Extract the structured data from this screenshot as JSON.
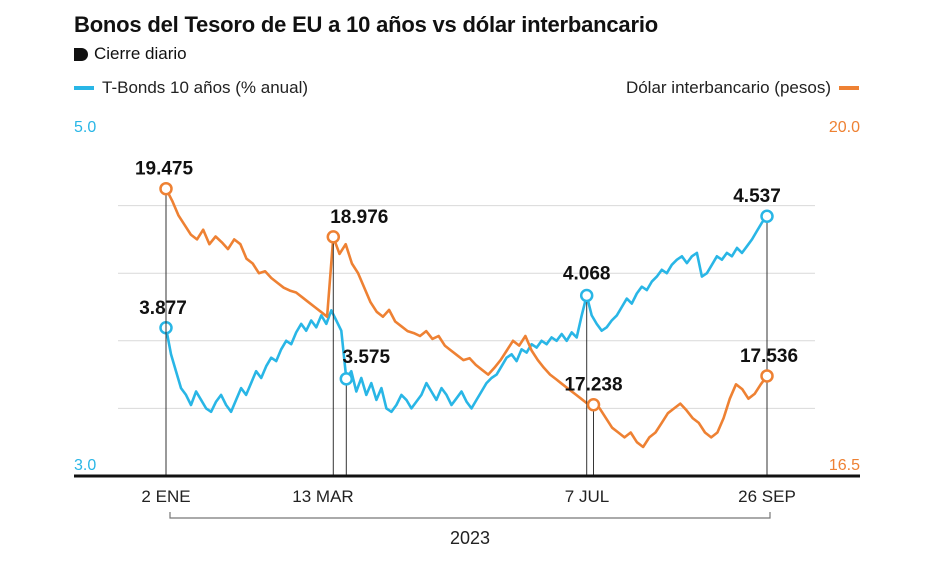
{
  "header": {
    "title": "Bonos del Tesoro de EU a 10 años vs dólar interbancario",
    "subtitle": "Cierre diario"
  },
  "colors": {
    "blue": "#29b6e6",
    "orange": "#ee8133",
    "axis": "#111111",
    "grid": "#d9d9d9"
  },
  "chart_data": {
    "type": "line",
    "x_axis": {
      "tick_labels": [
        "2 ENE",
        "13 MAR",
        "7 JUL",
        "26 SEP"
      ],
      "year_label": "2023"
    },
    "left_axis": {
      "min": 3.0,
      "max": 5.0,
      "min_label": "3.0",
      "max_label": "5.0"
    },
    "right_axis": {
      "min": 16.5,
      "max": 20.0,
      "min_label": "16.5",
      "max_label": "20.0"
    },
    "grid": true,
    "series": [
      {
        "name": "T-Bonds 10 años (% anual)",
        "axis": "left",
        "values": [
          3.877,
          3.72,
          3.62,
          3.52,
          3.48,
          3.42,
          3.5,
          3.45,
          3.4,
          3.38,
          3.44,
          3.48,
          3.42,
          3.38,
          3.45,
          3.52,
          3.48,
          3.55,
          3.62,
          3.58,
          3.65,
          3.7,
          3.68,
          3.75,
          3.8,
          3.78,
          3.85,
          3.9,
          3.86,
          3.92,
          3.88,
          3.95,
          3.9,
          3.98,
          3.92,
          3.86,
          3.575,
          3.62,
          3.5,
          3.58,
          3.48,
          3.55,
          3.45,
          3.52,
          3.4,
          3.38,
          3.42,
          3.48,
          3.45,
          3.4,
          3.44,
          3.48,
          3.55,
          3.5,
          3.45,
          3.52,
          3.48,
          3.42,
          3.46,
          3.5,
          3.44,
          3.4,
          3.45,
          3.5,
          3.55,
          3.58,
          3.6,
          3.65,
          3.7,
          3.72,
          3.68,
          3.75,
          3.73,
          3.78,
          3.76,
          3.8,
          3.78,
          3.82,
          3.8,
          3.84,
          3.8,
          3.85,
          3.82,
          3.95,
          4.068,
          3.95,
          3.9,
          3.86,
          3.88,
          3.92,
          3.95,
          4.0,
          4.05,
          4.02,
          4.08,
          4.12,
          4.1,
          4.15,
          4.18,
          4.22,
          4.2,
          4.25,
          4.28,
          4.3,
          4.26,
          4.3,
          4.32,
          4.18,
          4.2,
          4.25,
          4.3,
          4.28,
          4.32,
          4.3,
          4.35,
          4.32,
          4.36,
          4.4,
          4.45,
          4.5,
          4.537
        ]
      },
      {
        "name": "Dólar interbancario (pesos)",
        "axis": "right",
        "values": [
          19.475,
          19.35,
          19.2,
          19.1,
          19.0,
          18.95,
          19.05,
          18.9,
          18.98,
          18.92,
          18.85,
          18.95,
          18.9,
          18.75,
          18.7,
          18.6,
          18.62,
          18.55,
          18.5,
          18.45,
          18.42,
          18.4,
          18.35,
          18.3,
          18.25,
          18.2,
          18.15,
          18.976,
          18.8,
          18.9,
          18.7,
          18.6,
          18.45,
          18.3,
          18.2,
          18.15,
          18.22,
          18.1,
          18.05,
          18.0,
          17.98,
          17.95,
          18.0,
          17.92,
          17.95,
          17.85,
          17.8,
          17.75,
          17.7,
          17.72,
          17.65,
          17.6,
          17.55,
          17.62,
          17.7,
          17.8,
          17.9,
          17.85,
          17.95,
          17.8,
          17.7,
          17.62,
          17.55,
          17.5,
          17.45,
          17.4,
          17.35,
          17.3,
          17.25,
          17.238,
          17.2,
          17.1,
          17.0,
          16.95,
          16.9,
          16.95,
          16.85,
          16.8,
          16.9,
          16.95,
          17.05,
          17.15,
          17.2,
          17.25,
          17.18,
          17.1,
          17.05,
          16.95,
          16.9,
          16.95,
          17.1,
          17.3,
          17.45,
          17.4,
          17.3,
          17.35,
          17.45,
          17.536
        ]
      }
    ],
    "annotations": [
      {
        "series": 0,
        "index": 0,
        "label": "3.877"
      },
      {
        "series": 0,
        "index": 36,
        "label": "3.575"
      },
      {
        "series": 0,
        "index": 84,
        "label": "4.068"
      },
      {
        "series": 0,
        "index": 120,
        "label": "4.537"
      },
      {
        "series": 1,
        "index": 0,
        "label": "19.475"
      },
      {
        "series": 1,
        "index": 27,
        "label": "18.976"
      },
      {
        "series": 1,
        "index": 69,
        "label": "17.238"
      },
      {
        "series": 1,
        "index": 97,
        "label": "17.536"
      }
    ]
  }
}
